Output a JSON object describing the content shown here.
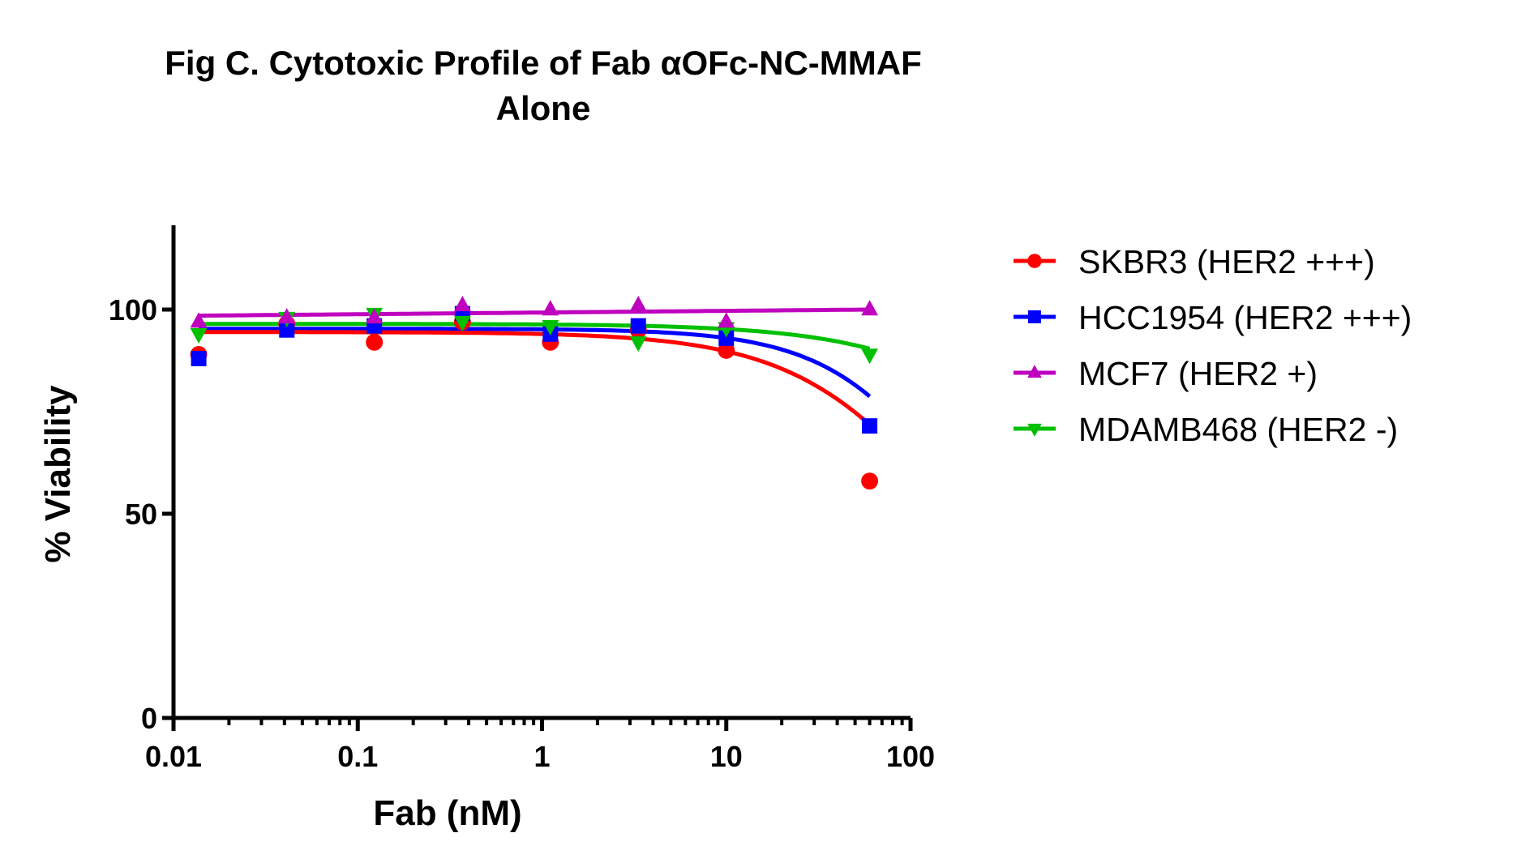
{
  "chart_data": {
    "type": "scatter",
    "title_lines": [
      "Fig C. Cytotoxic Profile of Fab αOFc-NC-MMAF",
      "Alone"
    ],
    "xlabel": "Fab (nM)",
    "ylabel": "% Viability",
    "xscale": "log",
    "xlim": [
      0.01,
      100
    ],
    "ylim": [
      0,
      120
    ],
    "xticks": [
      {
        "value": 0.01,
        "label": "0.01"
      },
      {
        "value": 0.1,
        "label": "0.1"
      },
      {
        "value": 1,
        "label": "1"
      },
      {
        "value": 10,
        "label": "10"
      },
      {
        "value": 100,
        "label": "100"
      }
    ],
    "yticks": [
      {
        "value": 0,
        "label": "0"
      },
      {
        "value": 50,
        "label": "50"
      },
      {
        "value": 100,
        "label": "100"
      }
    ],
    "grid": false,
    "legend_position": "right",
    "fit": "four-parameter dose-response curve",
    "x": [
      0.0137,
      0.0412,
      0.123,
      0.37,
      1.11,
      3.33,
      10,
      60
    ],
    "series": [
      {
        "name": "SKBR3 (HER2 +++)",
        "color": "#ff0000",
        "marker": "circle",
        "values": [
          89,
          96.5,
          92,
          97,
          92,
          95,
          90,
          58
        ],
        "curve": {
          "top": 94.5,
          "bottom": 0,
          "ec50": 190,
          "hill": 1.0
        }
      },
      {
        "name": "HCC1954 (HER2 +++)",
        "color": "#0000ff",
        "marker": "square",
        "values": [
          88,
          95,
          96,
          99,
          94,
          96,
          93,
          71.5
        ],
        "curve": {
          "top": 95.3,
          "bottom": 0,
          "ec50": 220,
          "hill": 1.2
        }
      },
      {
        "name": "MCF7 (HER2 +)",
        "color": "#bf00bf",
        "marker": "triangle-up",
        "values": [
          97,
          98,
          98,
          101,
          100,
          101,
          97,
          100
        ],
        "curve": {
          "top": 98.5,
          "bottom": 98.5,
          "ec50": 1,
          "hill": 1,
          "slope_linear": 0.018
        }
      },
      {
        "name": "MDAMB468 (HER2 -)",
        "color": "#00c000",
        "marker": "triangle-down",
        "values": [
          94,
          98,
          99,
          97,
          96,
          92,
          95.5,
          89
        ],
        "curve": {
          "top": 96.5,
          "bottom": 0,
          "ec50": 1200,
          "hill": 0.9
        }
      }
    ]
  }
}
